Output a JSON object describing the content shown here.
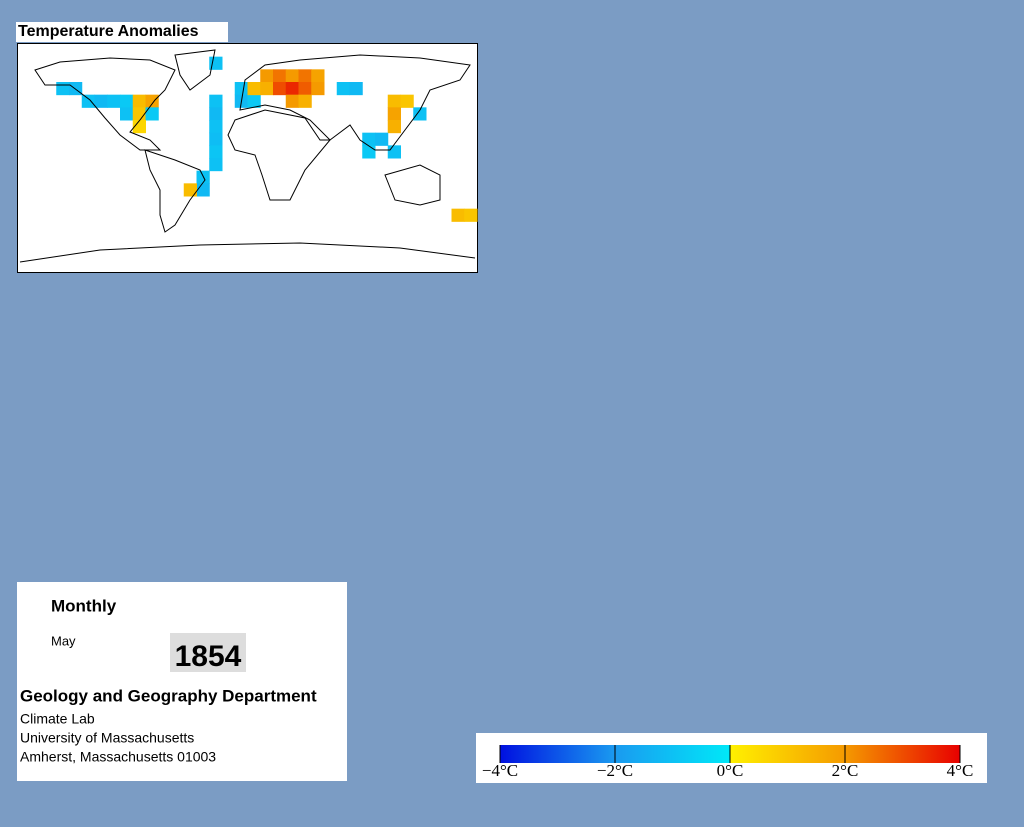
{
  "map": {
    "title": "Temperature Anomalies",
    "cells": [
      {
        "lon": -145,
        "lat": 55,
        "value": -1.0
      },
      {
        "lon": -135,
        "lat": 55,
        "value": -1.2
      },
      {
        "lon": -125,
        "lat": 45,
        "value": -1.0
      },
      {
        "lon": -115,
        "lat": 45,
        "value": -1.2
      },
      {
        "lon": -105,
        "lat": 45,
        "value": -1.0
      },
      {
        "lon": -95,
        "lat": 45,
        "value": -0.8
      },
      {
        "lon": -85,
        "lat": 45,
        "value": 1.2
      },
      {
        "lon": -75,
        "lat": 45,
        "value": 1.8
      },
      {
        "lon": -95,
        "lat": 35,
        "value": -1.0
      },
      {
        "lon": -85,
        "lat": 35,
        "value": 1.0
      },
      {
        "lon": -75,
        "lat": 35,
        "value": -0.8
      },
      {
        "lon": -85,
        "lat": 25,
        "value": 0.6
      },
      {
        "lon": -25,
        "lat": 75,
        "value": -1.0
      },
      {
        "lon": -25,
        "lat": 45,
        "value": -1.0
      },
      {
        "lon": -25,
        "lat": 35,
        "value": -1.2
      },
      {
        "lon": -25,
        "lat": 25,
        "value": -1.0
      },
      {
        "lon": -25,
        "lat": 15,
        "value": -1.1
      },
      {
        "lon": -25,
        "lat": 5,
        "value": -0.9
      },
      {
        "lon": -25,
        "lat": -5,
        "value": -1.0
      },
      {
        "lon": -35,
        "lat": -15,
        "value": -1.0
      },
      {
        "lon": -35,
        "lat": -25,
        "value": -1.2
      },
      {
        "lon": -45,
        "lat": -25,
        "value": 1.2
      },
      {
        "lon": -5,
        "lat": 55,
        "value": -1.0
      },
      {
        "lon": -5,
        "lat": 45,
        "value": -1.2
      },
      {
        "lon": 5,
        "lat": 45,
        "value": -0.8
      },
      {
        "lon": 5,
        "lat": 55,
        "value": 1.2
      },
      {
        "lon": 15,
        "lat": 65,
        "value": 2.0
      },
      {
        "lon": 25,
        "lat": 65,
        "value": 2.5
      },
      {
        "lon": 35,
        "lat": 65,
        "value": 2.0
      },
      {
        "lon": 45,
        "lat": 65,
        "value": 2.5
      },
      {
        "lon": 55,
        "lat": 65,
        "value": 1.8
      },
      {
        "lon": 15,
        "lat": 55,
        "value": 1.5
      },
      {
        "lon": 25,
        "lat": 55,
        "value": 3.0
      },
      {
        "lon": 35,
        "lat": 55,
        "value": 3.5
      },
      {
        "lon": 45,
        "lat": 55,
        "value": 2.8
      },
      {
        "lon": 55,
        "lat": 55,
        "value": 2.0
      },
      {
        "lon": 35,
        "lat": 45,
        "value": 2.0
      },
      {
        "lon": 45,
        "lat": 45,
        "value": 1.5
      },
      {
        "lon": 75,
        "lat": 55,
        "value": -1.0
      },
      {
        "lon": 85,
        "lat": 55,
        "value": -1.2
      },
      {
        "lon": 115,
        "lat": 45,
        "value": 1.2
      },
      {
        "lon": 125,
        "lat": 45,
        "value": 1.0
      },
      {
        "lon": 115,
        "lat": 35,
        "value": 1.8
      },
      {
        "lon": 115,
        "lat": 25,
        "value": 1.5
      },
      {
        "lon": 135,
        "lat": 35,
        "value": -1.0
      },
      {
        "lon": 95,
        "lat": 15,
        "value": -1.0
      },
      {
        "lon": 105,
        "lat": 15,
        "value": -1.2
      },
      {
        "lon": 95,
        "lat": 5,
        "value": -0.8
      },
      {
        "lon": 115,
        "lat": 5,
        "value": -1.0
      },
      {
        "lon": 165,
        "lat": -45,
        "value": 1.2
      },
      {
        "lon": 175,
        "lat": -45,
        "value": 1.0
      }
    ]
  },
  "info": {
    "period": "Monthly",
    "month": "May",
    "year": "1854",
    "department": "Geology and Geography Department",
    "lines": [
      "Climate Lab",
      "University of Massachusetts",
      "Amherst, Massachusetts 01003"
    ]
  },
  "colorbar": {
    "range": [
      -4,
      4
    ],
    "ticks": [
      {
        "value": -4,
        "label": "−4°C"
      },
      {
        "value": -2,
        "label": "−2°C"
      },
      {
        "value": 0,
        "label": "0°C"
      },
      {
        "value": 2,
        "label": "2°C"
      },
      {
        "value": 4,
        "label": "4°C"
      }
    ]
  }
}
